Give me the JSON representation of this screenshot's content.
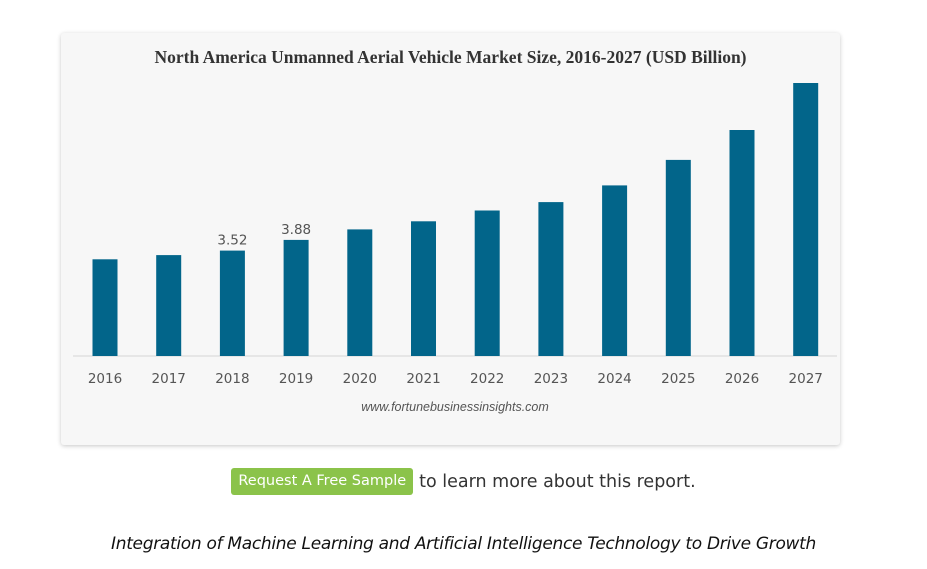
{
  "chart_data": {
    "type": "bar",
    "title": "North America Unmanned Aerial Vehicle Market Size, 2016-2027 (USD Billion)",
    "xlabel": "",
    "ylabel": "",
    "categories": [
      "2016",
      "2017",
      "2018",
      "2019",
      "2020",
      "2021",
      "2022",
      "2023",
      "2024",
      "2025",
      "2026",
      "2027"
    ],
    "values": [
      3.23,
      3.37,
      3.52,
      3.88,
      4.23,
      4.5,
      4.86,
      5.14,
      5.7,
      6.55,
      7.55,
      9.12
    ],
    "value_labels": [
      "",
      "",
      "3.52",
      "3.88",
      "",
      "",
      "",
      "",
      "",
      "",
      "",
      ""
    ],
    "ylim": [
      0,
      9.12
    ],
    "bar_color": "#02658a",
    "grid": false,
    "legend": "none",
    "source": "www.fortunebusinessinsights.com"
  },
  "cta": {
    "button_label": "Request A Free Sample",
    "button_color": "#8bc34a",
    "text": "to learn more about this report."
  },
  "subheading": "Integration of Machine Learning and Artificial Intelligence Technology to Drive Growth"
}
